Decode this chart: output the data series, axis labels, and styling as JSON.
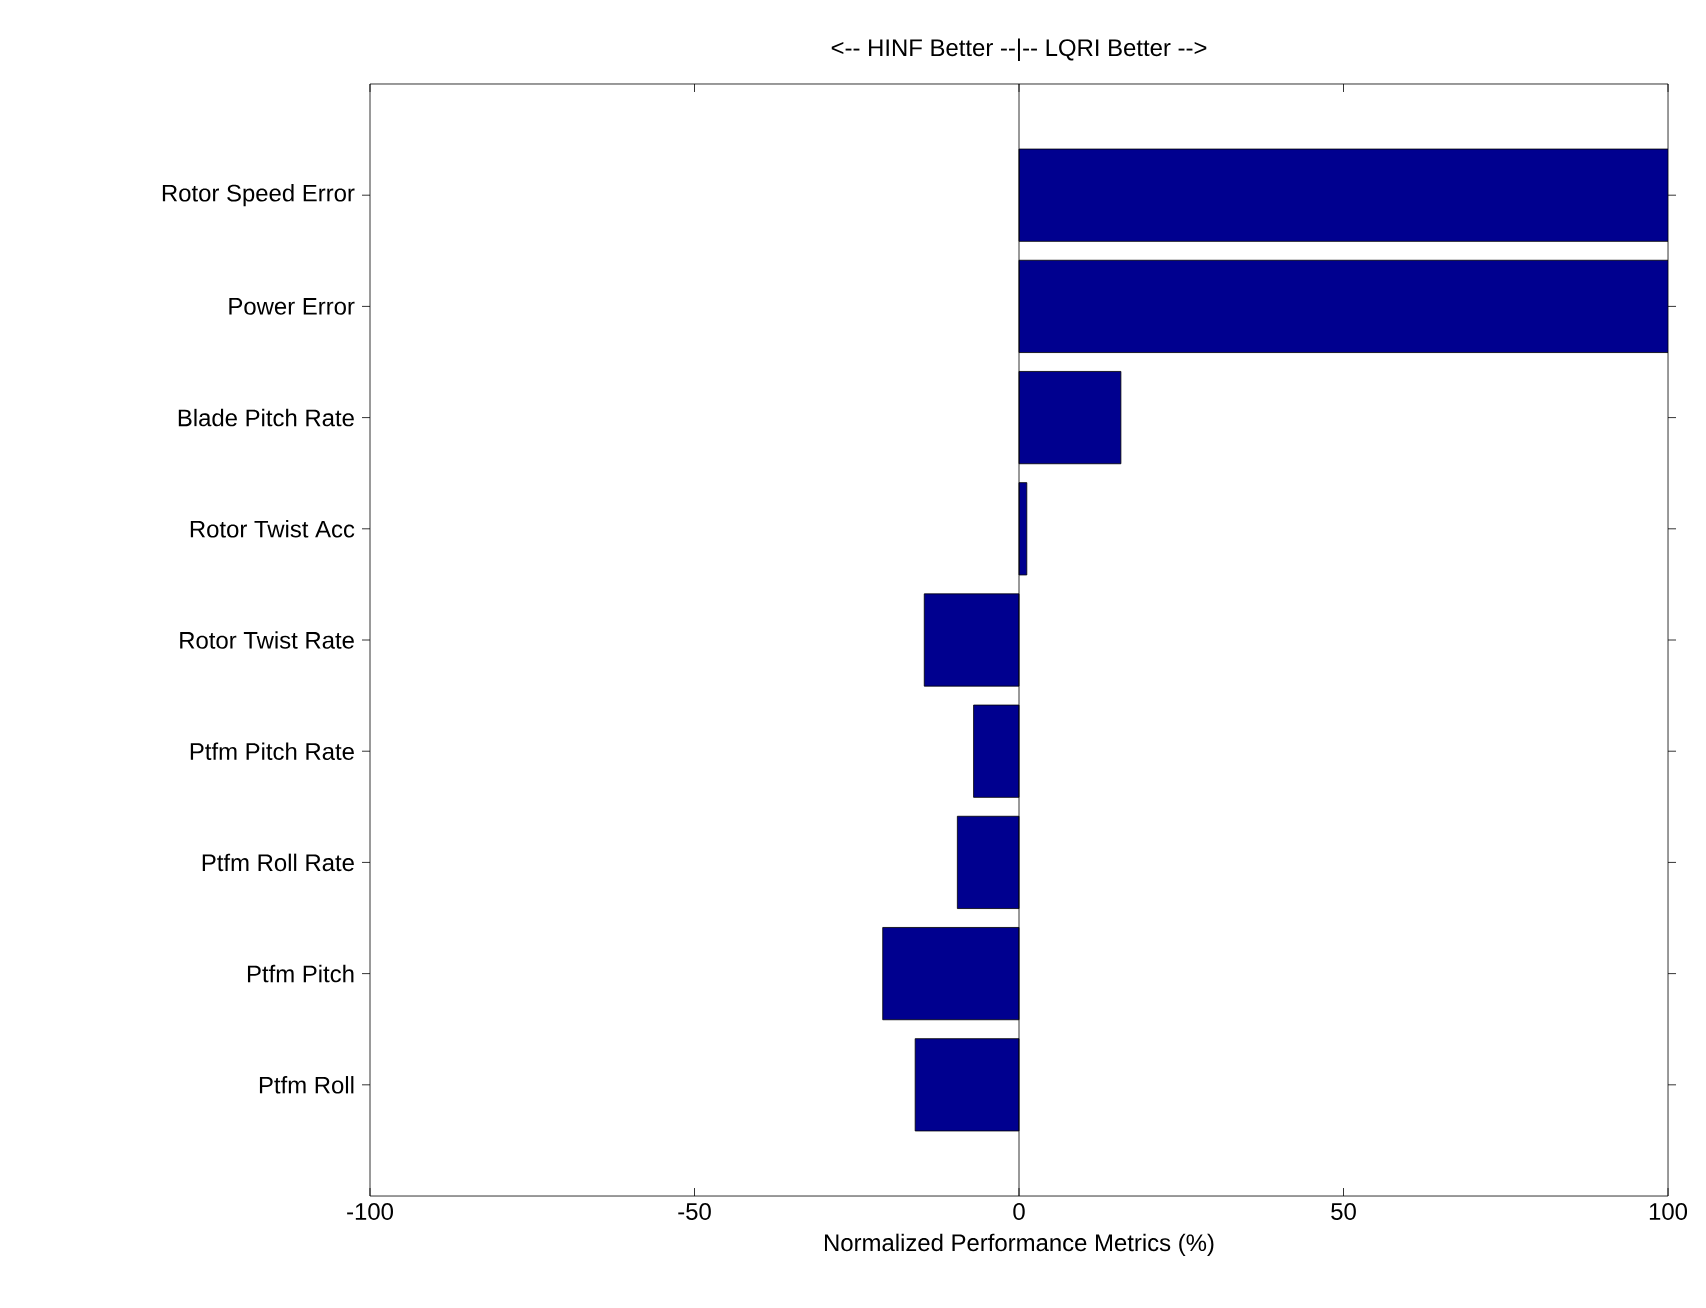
{
  "chart_data": {
    "type": "bar",
    "orientation": "horizontal",
    "title": "<-- HINF Better --|-- LQRI Better -->",
    "xlabel": "Normalized Performance Metrics (%)",
    "categories": [
      "Rotor Speed Error",
      "Power Error",
      "Blade Pitch Rate",
      "Rotor Twist Acc",
      "Rotor Twist Rate",
      "Ptfm Pitch Rate",
      "Ptfm Roll Rate",
      "Ptfm Pitch",
      "Ptfm Roll"
    ],
    "values": [
      100,
      100,
      15.7,
      1.2,
      -14.6,
      -7,
      -9.5,
      -21,
      -16
    ],
    "color": "#00008f",
    "xlim": [
      -100,
      100
    ],
    "xticks": [
      -100,
      -50,
      0,
      50,
      100
    ],
    "ref_lines": [
      {
        "axis": "x",
        "value": 0,
        "color": "#000000"
      }
    ],
    "grid": false
  }
}
